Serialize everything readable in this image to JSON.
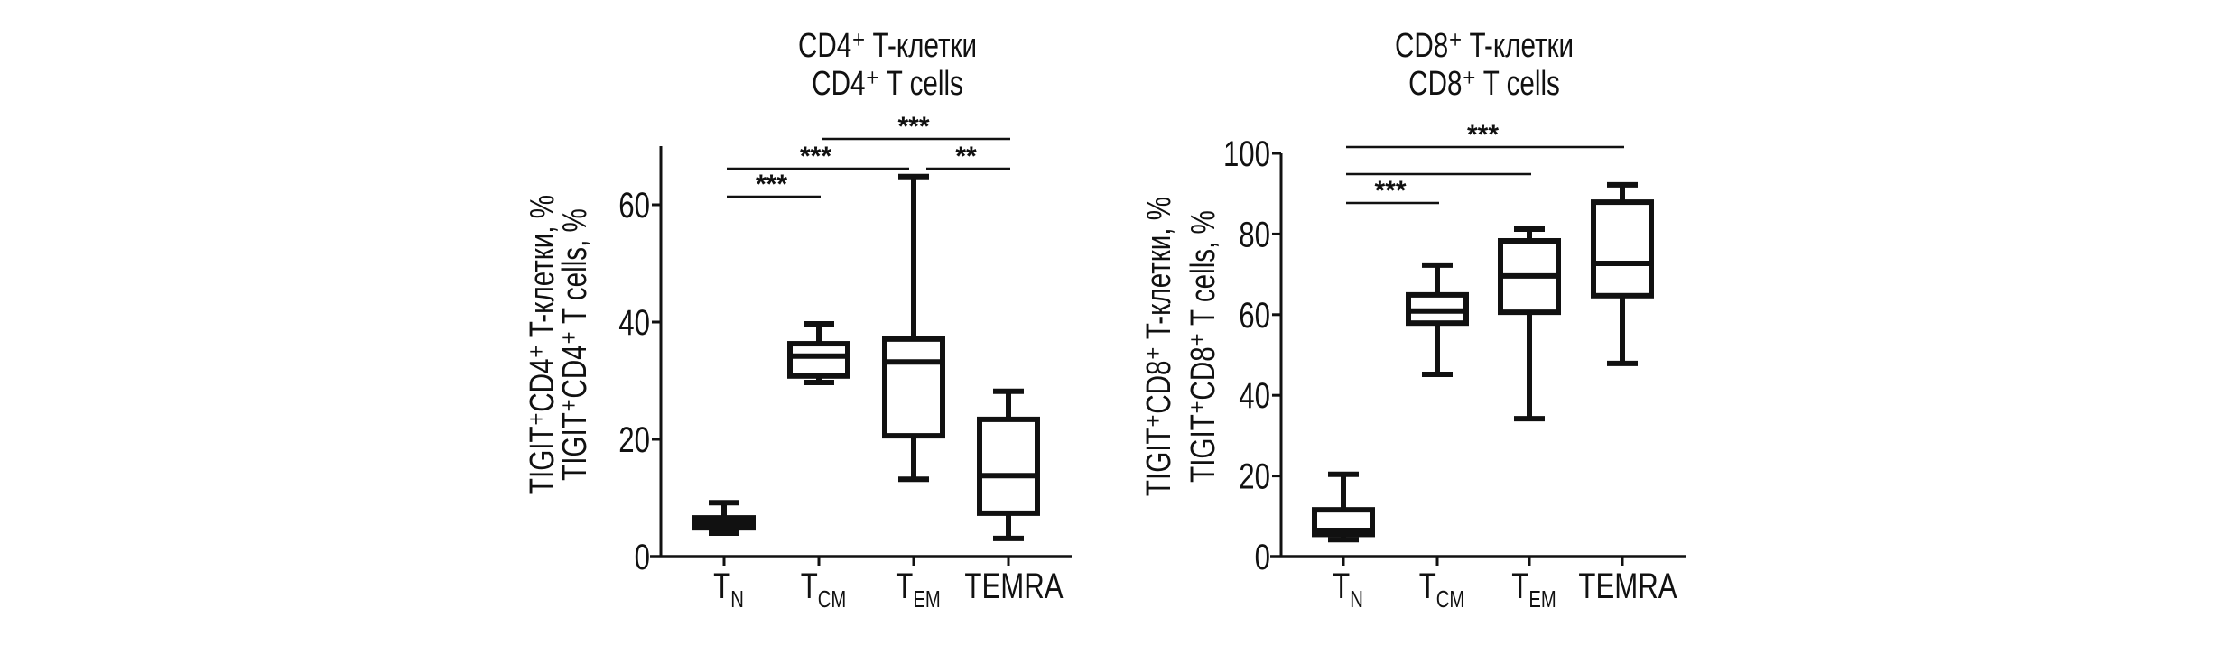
{
  "chart_data": [
    {
      "type": "box",
      "title_lines": [
        "CD4⁺ T-клетки",
        "CD4⁺ T cells"
      ],
      "ylabel_lines": [
        "TIGIT⁺CD4⁺ T-клетки, %",
        "TIGIT⁺CD4⁺ T cells, %"
      ],
      "xlabel": "",
      "ylim": [
        0,
        70
      ],
      "yticks": [
        0,
        20,
        40,
        60
      ],
      "categories": [
        {
          "main": "T",
          "sub": "N"
        },
        {
          "main": "T",
          "sub": "CM"
        },
        {
          "main": "T",
          "sub": "EM"
        },
        {
          "main": "TEMRA",
          "sub": ""
        }
      ],
      "boxes": [
        {
          "min": 4.0,
          "q1": 4.9,
          "median": 5.7,
          "q3": 6.6,
          "max": 9.2
        },
        {
          "min": 29.7,
          "q1": 30.8,
          "median": 34.2,
          "q3": 36.3,
          "max": 39.7
        },
        {
          "min": 13.2,
          "q1": 20.6,
          "median": 33.2,
          "q3": 37.1,
          "max": 64.8
        },
        {
          "min": 3.1,
          "q1": 7.4,
          "median": 13.8,
          "q3": 23.4,
          "max": 28.2
        }
      ],
      "significance": [
        {
          "from": 0,
          "to": 1,
          "label": "***",
          "level": 0
        },
        {
          "from": 0,
          "to": 2,
          "label": "***",
          "level": 1
        },
        {
          "from": 2,
          "to": 3,
          "label": "**",
          "level": 1
        },
        {
          "from": 1,
          "to": 3,
          "label": "***",
          "level": 2
        }
      ],
      "grid": false,
      "legend": "none"
    },
    {
      "type": "box",
      "title_lines": [
        "CD8⁺ T-клетки",
        "CD8⁺ T cells"
      ],
      "ylabel_lines": [
        "TIGIT⁺CD8⁺ T-клетки, %",
        "TIGIT⁺CD8⁺ T cells, %"
      ],
      "xlabel": "",
      "ylim": [
        0,
        100
      ],
      "yticks": [
        0,
        20,
        40,
        60,
        80,
        100
      ],
      "categories": [
        {
          "main": "T",
          "sub": "N"
        },
        {
          "main": "T",
          "sub": "CM"
        },
        {
          "main": "T",
          "sub": "EM"
        },
        {
          "main": "TEMRA",
          "sub": ""
        }
      ],
      "boxes": [
        {
          "min": 4.2,
          "q1": 5.5,
          "median": 6.5,
          "q3": 11.6,
          "max": 20.4
        },
        {
          "min": 45.2,
          "q1": 57.9,
          "median": 60.9,
          "q3": 64.9,
          "max": 72.3
        },
        {
          "min": 34.2,
          "q1": 60.6,
          "median": 69.6,
          "q3": 78.3,
          "max": 81.2
        },
        {
          "min": 47.9,
          "q1": 64.7,
          "median": 72.7,
          "q3": 87.9,
          "max": 92.2
        }
      ],
      "significance": [
        {
          "from": 0,
          "to": 1,
          "label": "***",
          "level": 0
        },
        {
          "from": 0,
          "to": 2,
          "label": "",
          "level": 1
        },
        {
          "from": 0,
          "to": 3,
          "label": "***",
          "level": 2
        }
      ],
      "grid": false,
      "legend": "none"
    }
  ]
}
